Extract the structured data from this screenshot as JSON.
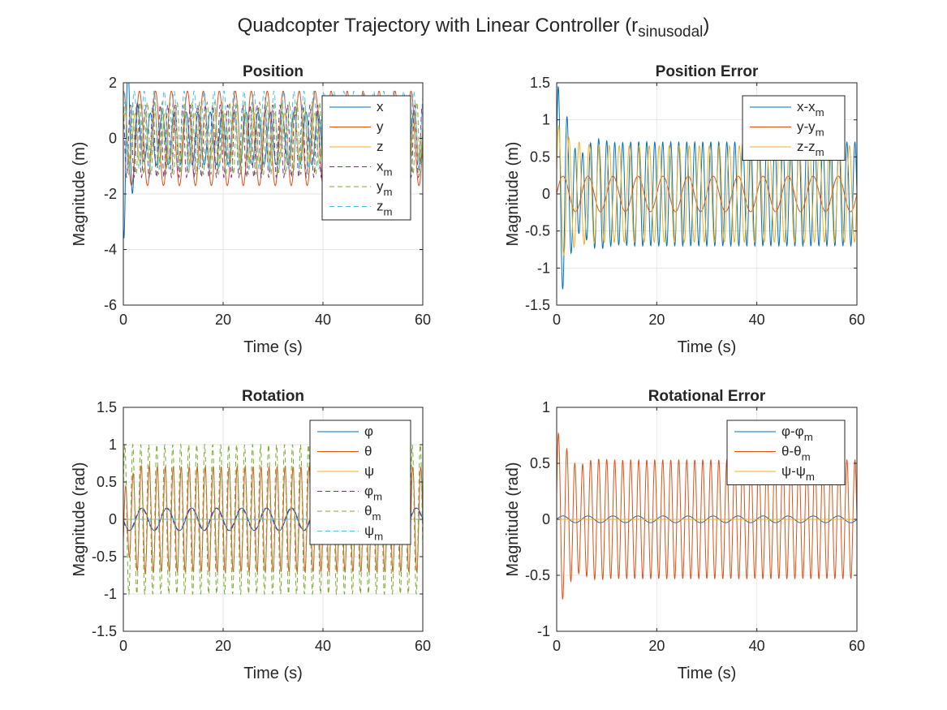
{
  "figure": {
    "title_main": "Quadcopter Trajectory with Linear Controller (r",
    "title_sub": "sinusodal",
    "title_close": ")"
  },
  "chart_data": [
    {
      "type": "line",
      "title": "Position",
      "xlabel": "Time (s)",
      "ylabel": "Magnitude (m)",
      "xlim": [
        0,
        60
      ],
      "ylim": [
        -6,
        2
      ],
      "xticks": [
        0,
        20,
        40,
        60
      ],
      "yticks": [
        -6,
        -4,
        -2,
        0,
        2
      ],
      "grid": true,
      "legend": "top-right",
      "series": [
        {
          "name": "x",
          "color": "#0072BD",
          "dash": "solid",
          "signal": {
            "kind": "sine",
            "amp": 0.95,
            "period": 2.4,
            "offset": 0.0,
            "phase": 0.0,
            "transient": {
              "amp": -4.5,
              "decay": 0.8,
              "freq": 1.2
            }
          }
        },
        {
          "name": "y",
          "color": "#D95319",
          "dash": "solid",
          "signal": {
            "kind": "sine",
            "amp": 1.7,
            "period": 3.2,
            "offset": 0.0,
            "phase": 1.5
          }
        },
        {
          "name": "z",
          "color": "#EDB120",
          "dash": "solid",
          "signal": {
            "kind": "sine",
            "amp": 0.9,
            "period": 2.0,
            "offset": 0.0,
            "phase": 0.5
          }
        },
        {
          "name": "x_m",
          "color": "#7E2F8E",
          "dash": "6,4",
          "signal": {
            "kind": "sine",
            "amp": 1.3,
            "period": 1.5,
            "offset": -0.1,
            "phase": 2.0
          }
        },
        {
          "name": "y_m",
          "color": "#77AC30",
          "dash": "6,4",
          "signal": {
            "kind": "sine",
            "amp": 1.3,
            "period": 1.5,
            "offset": 0.0,
            "phase": 0.3
          }
        },
        {
          "name": "z_m",
          "color": "#4DBEEE",
          "dash": "6,4",
          "signal": {
            "kind": "sine",
            "amp": 1.4,
            "period": 2.0,
            "offset": 0.3,
            "phase": 1.0
          }
        }
      ]
    },
    {
      "type": "line",
      "title": "Position Error",
      "xlabel": "Time (s)",
      "ylabel": "Magnitude (m)",
      "xlim": [
        0,
        60
      ],
      "ylim": [
        -1.5,
        1.5
      ],
      "xticks": [
        0,
        20,
        40,
        60
      ],
      "yticks": [
        -1.5,
        -1,
        -0.5,
        0,
        0.5,
        1,
        1.5
      ],
      "grid": true,
      "legend": "top-right",
      "series": [
        {
          "name": "x-x_m",
          "color": "#0072BD",
          "dash": "solid",
          "signal": {
            "kind": "sine",
            "amp": 0.7,
            "period": 1.6,
            "offset": 0.0,
            "phase": 0.0,
            "transient": {
              "amp": 0.9,
              "decay": 0.35,
              "freq": 1.0
            }
          }
        },
        {
          "name": "y-y_m",
          "color": "#D95319",
          "dash": "solid",
          "signal": {
            "kind": "sine",
            "amp": 0.24,
            "period": 5.0,
            "offset": 0.0,
            "phase": 0.0
          }
        },
        {
          "name": "z-z_m",
          "color": "#EDB120",
          "dash": "solid",
          "signal": {
            "kind": "sine",
            "amp": 0.65,
            "period": 2.0,
            "offset": 0.0,
            "phase": 0.0,
            "transient": {
              "amp": 0.4,
              "decay": 0.4,
              "freq": 1.0
            }
          }
        }
      ]
    },
    {
      "type": "line",
      "title": "Rotation",
      "xlabel": "Time (s)",
      "ylabel": "Magnitude (rad)",
      "xlim": [
        0,
        60
      ],
      "ylim": [
        -1.5,
        1.5
      ],
      "xticks": [
        0,
        20,
        40,
        60
      ],
      "yticks": [
        -1.5,
        -1,
        -0.5,
        0,
        0.5,
        1,
        1.5
      ],
      "grid": true,
      "legend": "top-right",
      "series": [
        {
          "name": "φ",
          "color": "#0072BD",
          "dash": "solid",
          "signal": {
            "kind": "sine",
            "amp": 0.15,
            "period": 5.0,
            "offset": 0.0,
            "phase": 3.14
          }
        },
        {
          "name": "θ",
          "color": "#D95319",
          "dash": "solid",
          "signal": {
            "kind": "sine",
            "amp": 0.7,
            "period": 1.6,
            "offset": 0.0,
            "phase": 0.0,
            "transient": {
              "amp": -0.4,
              "decay": 0.6,
              "freq": 1.0
            }
          }
        },
        {
          "name": "ψ",
          "color": "#EDB120",
          "dash": "solid",
          "signal": {
            "kind": "sine",
            "amp": 0.0,
            "period": 10.0,
            "offset": 0.0,
            "phase": 0.0
          }
        },
        {
          "name": "φ_m",
          "color": "#7E2F8E",
          "dash": "6,4",
          "signal": {
            "kind": "sine",
            "amp": 0.15,
            "period": 5.0,
            "offset": 0.0,
            "phase": 3.3
          }
        },
        {
          "name": "θ_m",
          "color": "#77AC30",
          "dash": "6,4",
          "signal": {
            "kind": "sine",
            "amp": 1.0,
            "period": 1.6,
            "offset": 0.0,
            "phase": 0.4
          }
        },
        {
          "name": "ψ_m",
          "color": "#4DBEEE",
          "dash": "6,4",
          "signal": {
            "kind": "sine",
            "amp": 0.0,
            "period": 10.0,
            "offset": 0.0,
            "phase": 0.0
          }
        }
      ]
    },
    {
      "type": "line",
      "title": "Rotational Error",
      "xlabel": "Time (s)",
      "ylabel": "Magnitude (rad)",
      "xlim": [
        0,
        60
      ],
      "ylim": [
        -1,
        1
      ],
      "xticks": [
        0,
        20,
        40,
        60
      ],
      "yticks": [
        -1,
        -0.5,
        0,
        0.5,
        1
      ],
      "grid": true,
      "legend": "top-right",
      "series": [
        {
          "name": "φ-φ_m",
          "color": "#0072BD",
          "dash": "solid",
          "signal": {
            "kind": "sine",
            "amp": 0.03,
            "period": 5.0,
            "offset": 0.0,
            "phase": 0.0
          }
        },
        {
          "name": "θ-θ_m",
          "color": "#D95319",
          "dash": "solid",
          "signal": {
            "kind": "sine",
            "amp": 0.53,
            "period": 1.6,
            "offset": 0.0,
            "phase": 0.0,
            "transient": {
              "amp": 0.3,
              "decay": 0.4,
              "freq": 1.0
            }
          }
        },
        {
          "name": "ψ-ψ_m",
          "color": "#EDB120",
          "dash": "solid",
          "signal": {
            "kind": "sine",
            "amp": 0.0,
            "period": 10.0,
            "offset": 0.0,
            "phase": 0.0
          }
        }
      ]
    }
  ]
}
